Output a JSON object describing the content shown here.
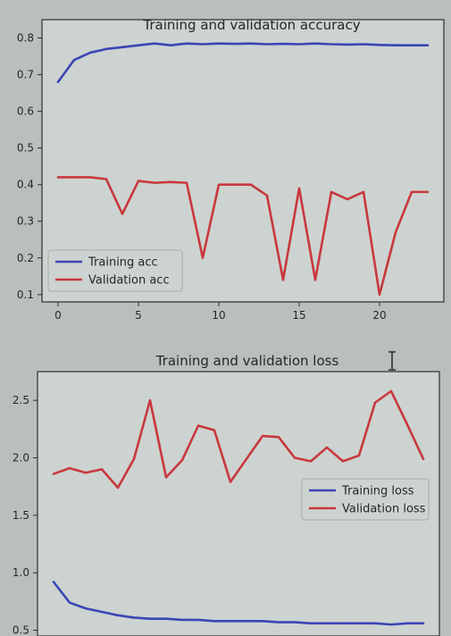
{
  "colors": {
    "background": "#b9bfbc",
    "plot_area": "#cdd3d0",
    "axes": "#2b2f33",
    "text": "#23272b",
    "training": "#3a45b5",
    "validation": "#c8383e"
  },
  "cursor": {
    "icon": "text-cursor-icon"
  },
  "chart_data": [
    {
      "type": "line",
      "title": "Training and validation accuracy",
      "xlabel": "",
      "ylabel": "",
      "xlim": [
        -1,
        24
      ],
      "ylim": [
        0.08,
        0.85
      ],
      "xticks": [
        0,
        5,
        10,
        15,
        20
      ],
      "yticks": [
        0.1,
        0.2,
        0.3,
        0.4,
        0.5,
        0.6,
        0.7,
        0.8
      ],
      "ytick_labels": [
        "0.1",
        "0.2",
        "0.3",
        "0.4",
        "0.5",
        "0.6",
        "0.7",
        "0.8"
      ],
      "grid": false,
      "legend": "bottom-left",
      "x": [
        0,
        1,
        2,
        3,
        4,
        5,
        6,
        7,
        8,
        9,
        10,
        11,
        12,
        13,
        14,
        15,
        16,
        17,
        18,
        19,
        20,
        21,
        22,
        23
      ],
      "series": [
        {
          "name": "Training acc",
          "color": "#3a45b5",
          "values": [
            0.68,
            0.74,
            0.76,
            0.77,
            0.775,
            0.78,
            0.785,
            0.78,
            0.785,
            0.783,
            0.785,
            0.784,
            0.785,
            0.783,
            0.784,
            0.783,
            0.785,
            0.783,
            0.782,
            0.783,
            0.781,
            0.78,
            0.78,
            0.78
          ]
        },
        {
          "name": "Validation acc",
          "color": "#c8383e",
          "values": [
            0.42,
            0.42,
            0.42,
            0.415,
            0.32,
            0.41,
            0.405,
            0.407,
            0.405,
            0.2,
            0.4,
            0.4,
            0.4,
            0.37,
            0.14,
            0.39,
            0.14,
            0.38,
            0.36,
            0.38,
            0.1,
            0.27,
            0.38,
            0.38
          ]
        }
      ]
    },
    {
      "type": "line",
      "title": "Training and validation loss",
      "xlabel": "",
      "ylabel": "",
      "xlim": [
        -1,
        24
      ],
      "ylim": [
        0.45,
        2.75
      ],
      "xticks": [
        0,
        5,
        10,
        15,
        20
      ],
      "yticks": [
        0.5,
        1.0,
        1.5,
        2.0,
        2.5
      ],
      "ytick_labels": [
        "0.5",
        "1.0",
        "1.5",
        "2.0",
        "2.5"
      ],
      "grid": false,
      "legend": "center-right",
      "x": [
        0,
        1,
        2,
        3,
        4,
        5,
        6,
        7,
        8,
        9,
        10,
        11,
        12,
        13,
        14,
        15,
        16,
        17,
        18,
        19,
        20,
        21,
        22,
        23
      ],
      "series": [
        {
          "name": "Training loss",
          "color": "#3a45b5",
          "values": [
            0.92,
            0.74,
            0.69,
            0.66,
            0.63,
            0.61,
            0.6,
            0.6,
            0.59,
            0.59,
            0.58,
            0.58,
            0.58,
            0.58,
            0.57,
            0.57,
            0.56,
            0.56,
            0.56,
            0.56,
            0.56,
            0.55,
            0.56,
            0.56
          ]
        },
        {
          "name": "Validation loss",
          "color": "#c8383e",
          "values": [
            1.86,
            1.91,
            1.87,
            1.9,
            1.74,
            1.99,
            2.5,
            1.83,
            1.98,
            2.28,
            2.24,
            1.79,
            1.99,
            2.19,
            2.18,
            2.0,
            1.97,
            2.09,
            1.97,
            2.02,
            2.48,
            2.58,
            2.29,
            1.99
          ]
        }
      ]
    }
  ]
}
